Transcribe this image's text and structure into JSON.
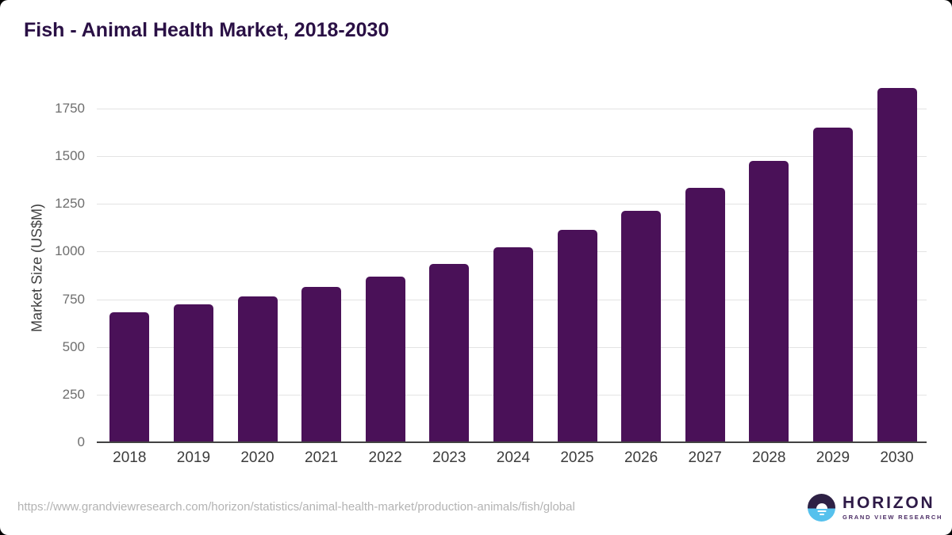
{
  "title": "Fish - Animal Health Market, 2018-2030",
  "chart_data": {
    "type": "bar",
    "title": "Fish - Animal Health Market, 2018-2030",
    "categories": [
      "2018",
      "2019",
      "2020",
      "2021",
      "2022",
      "2023",
      "2024",
      "2025",
      "2026",
      "2027",
      "2028",
      "2029",
      "2030"
    ],
    "values": [
      680,
      723,
      765,
      813,
      868,
      935,
      1021,
      1113,
      1212,
      1333,
      1474,
      1648,
      1858
    ],
    "xlabel": "",
    "ylabel": "Market Size (US$M)",
    "ylim": [
      0,
      1900
    ],
    "yticks": [
      0,
      250,
      500,
      750,
      1000,
      1250,
      1500,
      1750
    ],
    "grid": "horizontal",
    "legend": "none",
    "bar_color": "#4A1158"
  },
  "footer": {
    "source_url": "https://www.grandviewresearch.com/horizon/statistics/animal-health-market/production-animals/fish/global",
    "logo": {
      "name": "HORIZON",
      "subtitle": "GRAND VIEW RESEARCH",
      "icon": "horizon-sunset-icon",
      "icon_top_color": "#2E2145",
      "icon_bottom_color": "#56C1ED"
    }
  },
  "colors": {
    "bar": "#4A1158",
    "title_text": "#2A1045",
    "gridline": "#E3E3E3",
    "axis_line": "#424242",
    "y_tick_text": "#6E6E6E",
    "x_tick_text": "#3C3C3C",
    "source_text": "#B3B3B3",
    "background": "#FFFFFF"
  }
}
